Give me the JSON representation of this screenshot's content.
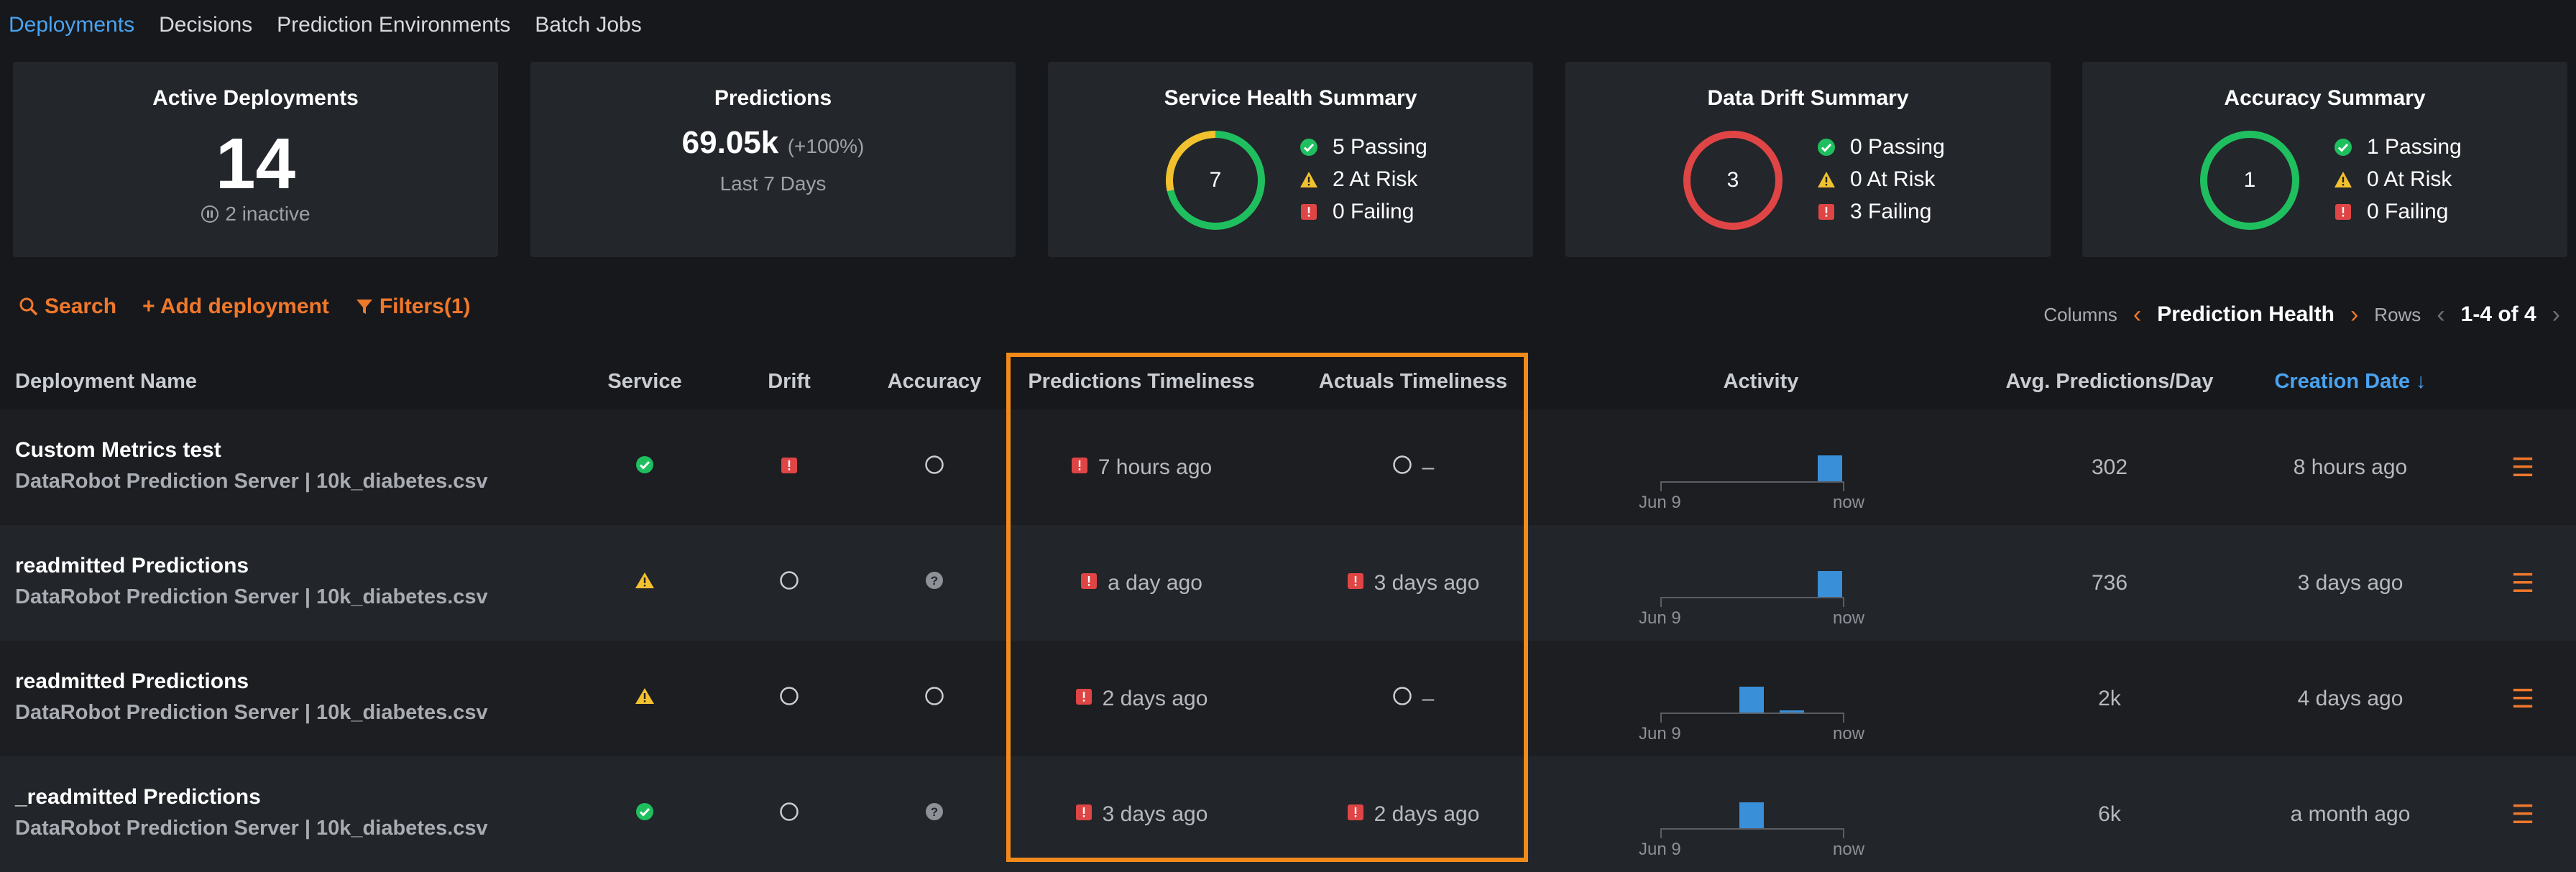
{
  "nav": {
    "tabs": [
      {
        "label": "Deployments",
        "active": true
      },
      {
        "label": "Decisions",
        "active": false
      },
      {
        "label": "Prediction Environments",
        "active": false
      },
      {
        "label": "Batch Jobs",
        "active": false
      }
    ]
  },
  "summary": {
    "active": {
      "title": "Active Deployments",
      "count": "14",
      "inactive": "2 inactive"
    },
    "predictions": {
      "title": "Predictions",
      "value": "69.05k",
      "change": "(+100%)",
      "period": "Last 7 Days"
    },
    "service": {
      "title": "Service Health Summary",
      "total": "7",
      "passing": "5 Passing",
      "at_risk": "2 At Risk",
      "failing": "0 Failing"
    },
    "drift": {
      "title": "Data Drift Summary",
      "total": "3",
      "passing": "0 Passing",
      "at_risk": "0 At Risk",
      "failing": "3 Failing"
    },
    "accuracy": {
      "title": "Accuracy Summary",
      "total": "1",
      "passing": "1 Passing",
      "at_risk": "0 At Risk",
      "failing": "0 Failing"
    }
  },
  "toolbar": {
    "search": "Search",
    "add": "+ Add deployment",
    "filters": "Filters(1)"
  },
  "pager": {
    "columns_label": "Columns",
    "columns_value": "Prediction Health",
    "rows_label": "Rows",
    "rows_value": "1-4 of 4"
  },
  "table": {
    "headers": {
      "name": "Deployment Name",
      "service": "Service",
      "drift": "Drift",
      "accuracy": "Accuracy",
      "pred_time": "Predictions Timeliness",
      "act_time": "Actuals Timeliness",
      "activity": "Activity",
      "avg": "Avg. Predictions/Day",
      "created": "Creation Date ↓"
    },
    "activity_labels": {
      "start": "Jun 9",
      "end": "now"
    },
    "rows": [
      {
        "name": "Custom Metrics test",
        "sub": "DataRobot Prediction Server | 10k_diabetes.csv",
        "service": "passing",
        "drift": "failing",
        "accuracy": "unknown",
        "pred_time": "7 hours ago",
        "pred_status": "failing",
        "act_time": "–",
        "act_status": "unknown",
        "avg": "302",
        "created": "8 hours ago"
      },
      {
        "name": "readmitted Predictions",
        "sub": "DataRobot Prediction Server | 10k_diabetes.csv",
        "service": "at-risk",
        "drift": "unknown",
        "accuracy": "not-applicable",
        "pred_time": "a day ago",
        "pred_status": "failing",
        "act_time": "3 days ago",
        "act_status": "failing",
        "avg": "736",
        "created": "3 days ago"
      },
      {
        "name": "readmitted Predictions",
        "sub": "DataRobot Prediction Server | 10k_diabetes.csv",
        "service": "at-risk",
        "drift": "unknown",
        "accuracy": "unknown",
        "pred_time": "2 days ago",
        "pred_status": "failing",
        "act_time": "–",
        "act_status": "unknown",
        "avg": "2k",
        "created": "4 days ago"
      },
      {
        "name": "_readmitted Predictions",
        "sub": "DataRobot Prediction Server | 10k_diabetes.csv",
        "service": "passing",
        "drift": "unknown",
        "accuracy": "not-applicable",
        "pred_time": "3 days ago",
        "pred_status": "failing",
        "act_time": "2 days ago",
        "act_status": "failing",
        "avg": "6k",
        "created": "a month ago"
      }
    ]
  },
  "colors": {
    "passing": "#1fbf5f",
    "at_risk": "#f2c12e",
    "failing": "#e04545",
    "accent": "#f0782b",
    "link": "#4aa3ef"
  }
}
